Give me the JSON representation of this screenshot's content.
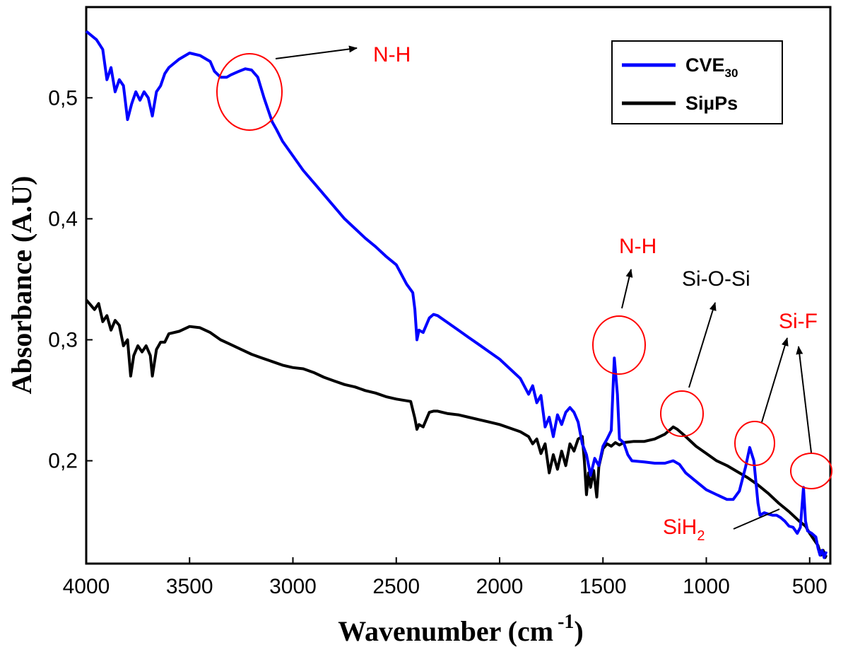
{
  "chart_data": {
    "type": "line",
    "xlabel": "Wavenumber (cm",
    "xlabel_sup": "-1",
    "xlabel_close": ")",
    "ylabel": "Absorbance   (A.U)",
    "xlim": [
      4000,
      400
    ],
    "ylim": [
      0.115,
      0.575
    ],
    "x_ticks": [
      4000,
      3500,
      3000,
      2500,
      2000,
      1500,
      1000,
      500
    ],
    "x_tick_labels": [
      "4000",
      "3500",
      "3000",
      "2500",
      "2000",
      "1500",
      "1000",
      "500"
    ],
    "y_ticks": [
      0.2,
      0.3,
      0.4,
      0.5
    ],
    "y_tick_labels": [
      "0,2",
      "0,3",
      "0,4",
      "0,5"
    ],
    "grid": false,
    "legend_position": "top-right",
    "series": [
      {
        "name": "CVE",
        "name_sub": "30",
        "color": "#0000ff",
        "points": [
          [
            4000,
            0.555
          ],
          [
            3950,
            0.548
          ],
          [
            3920,
            0.54
          ],
          [
            3900,
            0.515
          ],
          [
            3880,
            0.525
          ],
          [
            3860,
            0.505
          ],
          [
            3840,
            0.515
          ],
          [
            3820,
            0.51
          ],
          [
            3800,
            0.482
          ],
          [
            3780,
            0.495
          ],
          [
            3760,
            0.505
          ],
          [
            3740,
            0.498
          ],
          [
            3720,
            0.505
          ],
          [
            3700,
            0.5
          ],
          [
            3680,
            0.485
          ],
          [
            3660,
            0.505
          ],
          [
            3640,
            0.51
          ],
          [
            3620,
            0.52
          ],
          [
            3600,
            0.525
          ],
          [
            3550,
            0.532
          ],
          [
            3500,
            0.537
          ],
          [
            3450,
            0.535
          ],
          [
            3400,
            0.53
          ],
          [
            3380,
            0.522
          ],
          [
            3350,
            0.517
          ],
          [
            3320,
            0.517
          ],
          [
            3300,
            0.519
          ],
          [
            3260,
            0.522
          ],
          [
            3230,
            0.524
          ],
          [
            3200,
            0.523
          ],
          [
            3170,
            0.517
          ],
          [
            3140,
            0.5
          ],
          [
            3120,
            0.49
          ],
          [
            3100,
            0.48
          ],
          [
            3080,
            0.474
          ],
          [
            3050,
            0.464
          ],
          [
            3000,
            0.452
          ],
          [
            2950,
            0.44
          ],
          [
            2900,
            0.43
          ],
          [
            2850,
            0.42
          ],
          [
            2800,
            0.41
          ],
          [
            2750,
            0.4
          ],
          [
            2700,
            0.392
          ],
          [
            2650,
            0.384
          ],
          [
            2600,
            0.377
          ],
          [
            2550,
            0.369
          ],
          [
            2500,
            0.362
          ],
          [
            2450,
            0.346
          ],
          [
            2420,
            0.339
          ],
          [
            2410,
            0.325
          ],
          [
            2400,
            0.3
          ],
          [
            2390,
            0.308
          ],
          [
            2370,
            0.306
          ],
          [
            2340,
            0.318
          ],
          [
            2320,
            0.321
          ],
          [
            2300,
            0.32
          ],
          [
            2250,
            0.314
          ],
          [
            2200,
            0.308
          ],
          [
            2150,
            0.302
          ],
          [
            2100,
            0.296
          ],
          [
            2050,
            0.29
          ],
          [
            2000,
            0.284
          ],
          [
            1950,
            0.276
          ],
          [
            1900,
            0.268
          ],
          [
            1860,
            0.255
          ],
          [
            1840,
            0.262
          ],
          [
            1820,
            0.248
          ],
          [
            1800,
            0.254
          ],
          [
            1780,
            0.228
          ],
          [
            1760,
            0.236
          ],
          [
            1740,
            0.22
          ],
          [
            1720,
            0.238
          ],
          [
            1700,
            0.23
          ],
          [
            1680,
            0.24
          ],
          [
            1660,
            0.244
          ],
          [
            1640,
            0.24
          ],
          [
            1620,
            0.232
          ],
          [
            1600,
            0.214
          ],
          [
            1580,
            0.205
          ],
          [
            1560,
            0.188
          ],
          [
            1540,
            0.202
          ],
          [
            1520,
            0.196
          ],
          [
            1500,
            0.212
          ],
          [
            1480,
            0.218
          ],
          [
            1460,
            0.225
          ],
          [
            1445,
            0.285
          ],
          [
            1430,
            0.255
          ],
          [
            1420,
            0.218
          ],
          [
            1400,
            0.215
          ],
          [
            1380,
            0.205
          ],
          [
            1360,
            0.2
          ],
          [
            1300,
            0.199
          ],
          [
            1250,
            0.198
          ],
          [
            1200,
            0.198
          ],
          [
            1160,
            0.2
          ],
          [
            1130,
            0.197
          ],
          [
            1100,
            0.19
          ],
          [
            1050,
            0.183
          ],
          [
            1000,
            0.176
          ],
          [
            950,
            0.172
          ],
          [
            900,
            0.168
          ],
          [
            870,
            0.168
          ],
          [
            840,
            0.175
          ],
          [
            810,
            0.195
          ],
          [
            790,
            0.211
          ],
          [
            770,
            0.2
          ],
          [
            750,
            0.165
          ],
          [
            740,
            0.155
          ],
          [
            720,
            0.157
          ],
          [
            700,
            0.156
          ],
          [
            680,
            0.155
          ],
          [
            660,
            0.155
          ],
          [
            640,
            0.153
          ],
          [
            620,
            0.15
          ],
          [
            600,
            0.146
          ],
          [
            580,
            0.145
          ],
          [
            560,
            0.14
          ],
          [
            545,
            0.145
          ],
          [
            530,
            0.178
          ],
          [
            520,
            0.15
          ],
          [
            510,
            0.142
          ],
          [
            490,
            0.14
          ],
          [
            470,
            0.137
          ],
          [
            460,
            0.128
          ],
          [
            450,
            0.122
          ],
          [
            440,
            0.126
          ],
          [
            430,
            0.12
          ],
          [
            420,
            0.125
          ]
        ]
      },
      {
        "name": "SiµPs",
        "color": "#000000",
        "points": [
          [
            4000,
            0.333
          ],
          [
            3960,
            0.325
          ],
          [
            3940,
            0.33
          ],
          [
            3920,
            0.315
          ],
          [
            3900,
            0.32
          ],
          [
            3880,
            0.308
          ],
          [
            3860,
            0.316
          ],
          [
            3840,
            0.312
          ],
          [
            3820,
            0.295
          ],
          [
            3800,
            0.3
          ],
          [
            3785,
            0.27
          ],
          [
            3770,
            0.287
          ],
          [
            3750,
            0.295
          ],
          [
            3730,
            0.29
          ],
          [
            3710,
            0.295
          ],
          [
            3690,
            0.287
          ],
          [
            3680,
            0.27
          ],
          [
            3660,
            0.292
          ],
          [
            3640,
            0.298
          ],
          [
            3620,
            0.298
          ],
          [
            3600,
            0.305
          ],
          [
            3550,
            0.307
          ],
          [
            3500,
            0.311
          ],
          [
            3450,
            0.31
          ],
          [
            3400,
            0.306
          ],
          [
            3350,
            0.3
          ],
          [
            3300,
            0.296
          ],
          [
            3250,
            0.292
          ],
          [
            3200,
            0.288
          ],
          [
            3150,
            0.285
          ],
          [
            3100,
            0.282
          ],
          [
            3050,
            0.279
          ],
          [
            3000,
            0.277
          ],
          [
            2950,
            0.276
          ],
          [
            2900,
            0.273
          ],
          [
            2850,
            0.269
          ],
          [
            2800,
            0.266
          ],
          [
            2750,
            0.263
          ],
          [
            2700,
            0.261
          ],
          [
            2650,
            0.258
          ],
          [
            2600,
            0.256
          ],
          [
            2550,
            0.253
          ],
          [
            2500,
            0.251
          ],
          [
            2430,
            0.249
          ],
          [
            2410,
            0.235
          ],
          [
            2400,
            0.226
          ],
          [
            2390,
            0.23
          ],
          [
            2370,
            0.228
          ],
          [
            2340,
            0.24
          ],
          [
            2320,
            0.241
          ],
          [
            2300,
            0.241
          ],
          [
            2250,
            0.239
          ],
          [
            2200,
            0.238
          ],
          [
            2150,
            0.236
          ],
          [
            2100,
            0.234
          ],
          [
            2050,
            0.232
          ],
          [
            2000,
            0.23
          ],
          [
            1950,
            0.227
          ],
          [
            1900,
            0.224
          ],
          [
            1860,
            0.22
          ],
          [
            1840,
            0.214
          ],
          [
            1820,
            0.218
          ],
          [
            1800,
            0.206
          ],
          [
            1780,
            0.214
          ],
          [
            1760,
            0.19
          ],
          [
            1740,
            0.205
          ],
          [
            1720,
            0.193
          ],
          [
            1700,
            0.208
          ],
          [
            1680,
            0.196
          ],
          [
            1660,
            0.214
          ],
          [
            1640,
            0.208
          ],
          [
            1620,
            0.218
          ],
          [
            1600,
            0.22
          ],
          [
            1590,
            0.2
          ],
          [
            1580,
            0.172
          ],
          [
            1570,
            0.19
          ],
          [
            1560,
            0.178
          ],
          [
            1545,
            0.192
          ],
          [
            1530,
            0.17
          ],
          [
            1520,
            0.195
          ],
          [
            1500,
            0.21
          ],
          [
            1480,
            0.214
          ],
          [
            1460,
            0.212
          ],
          [
            1440,
            0.215
          ],
          [
            1420,
            0.213
          ],
          [
            1400,
            0.215
          ],
          [
            1350,
            0.216
          ],
          [
            1300,
            0.216
          ],
          [
            1250,
            0.218
          ],
          [
            1200,
            0.222
          ],
          [
            1160,
            0.228
          ],
          [
            1140,
            0.226
          ],
          [
            1100,
            0.22
          ],
          [
            1050,
            0.212
          ],
          [
            1000,
            0.206
          ],
          [
            950,
            0.2
          ],
          [
            900,
            0.196
          ],
          [
            850,
            0.191
          ],
          [
            800,
            0.186
          ],
          [
            750,
            0.18
          ],
          [
            700,
            0.173
          ],
          [
            650,
            0.165
          ],
          [
            600,
            0.158
          ],
          [
            550,
            0.15
          ],
          [
            520,
            0.146
          ],
          [
            500,
            0.14
          ],
          [
            480,
            0.135
          ],
          [
            460,
            0.13
          ],
          [
            445,
            0.122
          ],
          [
            435,
            0.126
          ],
          [
            425,
            0.12
          ],
          [
            420,
            0.122
          ]
        ]
      }
    ],
    "annotations": [
      {
        "text": "N-H",
        "color": "#ff0000"
      },
      {
        "text": "N-H",
        "color": "#ff0000"
      },
      {
        "text": "Si-O-Si",
        "color": "#000000"
      },
      {
        "text": "Si-F",
        "color": "#ff0000"
      },
      {
        "text": "SiH",
        "sub": "2",
        "color": "#ff0000"
      }
    ]
  }
}
